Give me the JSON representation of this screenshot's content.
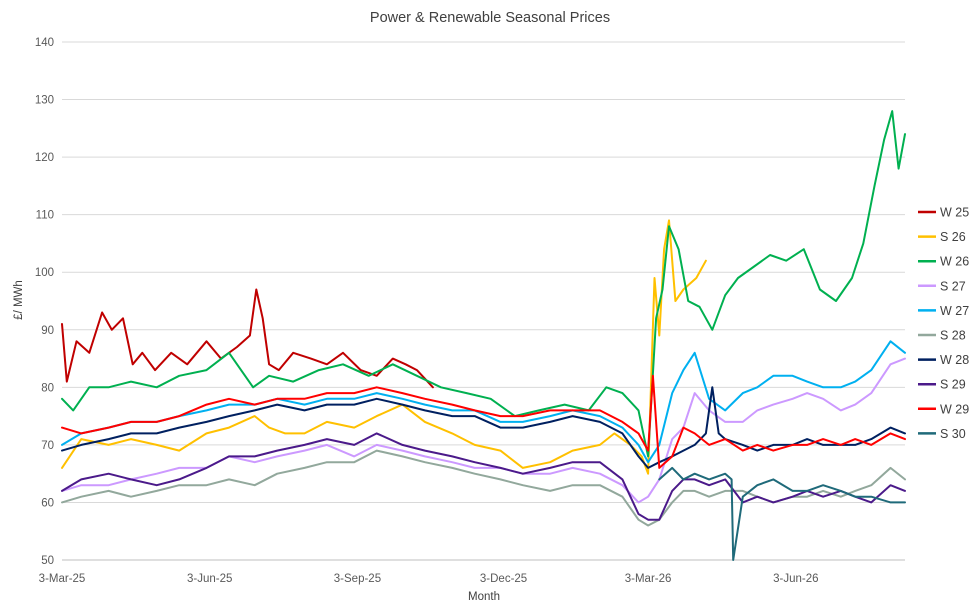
{
  "chart_data": {
    "type": "line",
    "title": "Power & Renewable Seasonal Prices",
    "xlabel": "Month",
    "ylabel": "£/ MWh",
    "ylim": [
      50,
      140
    ],
    "yticks": [
      50,
      60,
      70,
      80,
      90,
      100,
      110,
      120,
      130,
      140
    ],
    "xlim": [
      "2025-03-03",
      "2026-08-10"
    ],
    "xticks": [
      "2025-03-03",
      "2025-06-03",
      "2025-09-03",
      "2025-12-03",
      "2026-03-03",
      "2026-06-03"
    ],
    "xtick_labels": [
      "3-Mar-25",
      "3-Jun-25",
      "3-Sep-25",
      "3-Dec-25",
      "3-Mar-26",
      "3-Jun-26"
    ],
    "grid": "horizontal",
    "legend_position": "right",
    "series": [
      {
        "name": "W 25",
        "color": "#c00000",
        "x": [
          "2025-03-03",
          "2025-03-06",
          "2025-03-12",
          "2025-03-20",
          "2025-03-28",
          "2025-04-03",
          "2025-04-10",
          "2025-04-16",
          "2025-04-22",
          "2025-04-30",
          "2025-05-10",
          "2025-05-20",
          "2025-06-01",
          "2025-06-10",
          "2025-06-20",
          "2025-06-28",
          "2025-07-02",
          "2025-07-06",
          "2025-07-10",
          "2025-07-16",
          "2025-07-25",
          "2025-08-05",
          "2025-08-15",
          "2025-08-25",
          "2025-09-05",
          "2025-09-15",
          "2025-09-25",
          "2025-10-03",
          "2025-10-10",
          "2025-10-20"
        ],
        "y": [
          91,
          81,
          88,
          86,
          93,
          90,
          92,
          84,
          86,
          83,
          86,
          84,
          88,
          85,
          87,
          89,
          97,
          92,
          84,
          83,
          86,
          85,
          84,
          86,
          83,
          82,
          85,
          84,
          83,
          80
        ]
      },
      {
        "name": "S 26",
        "color": "#ffc000",
        "x": [
          "2025-03-03",
          "2025-03-15",
          "2025-04-01",
          "2025-04-15",
          "2025-05-01",
          "2025-05-15",
          "2025-06-01",
          "2025-06-15",
          "2025-07-01",
          "2025-07-10",
          "2025-07-20",
          "2025-08-01",
          "2025-08-15",
          "2025-09-01",
          "2025-09-15",
          "2025-10-01",
          "2025-10-15",
          "2025-11-01",
          "2025-11-15",
          "2025-12-01",
          "2025-12-15",
          "2026-01-01",
          "2026-01-15",
          "2026-02-01",
          "2026-02-10",
          "2026-02-20",
          "2026-02-27",
          "2026-03-03",
          "2026-03-07",
          "2026-03-10",
          "2026-03-13",
          "2026-03-16",
          "2026-03-20",
          "2026-03-25",
          "2026-04-02",
          "2026-04-08"
        ],
        "y": [
          66,
          71,
          70,
          71,
          70,
          69,
          72,
          73,
          75,
          73,
          72,
          72,
          74,
          73,
          75,
          77,
          74,
          72,
          70,
          69,
          66,
          67,
          69,
          70,
          72,
          70,
          68,
          65,
          99,
          89,
          104,
          109,
          95,
          97,
          99,
          102
        ]
      },
      {
        "name": "W 26",
        "color": "#00b050",
        "x": [
          "2025-03-03",
          "2025-03-10",
          "2025-03-20",
          "2025-04-01",
          "2025-04-15",
          "2025-05-01",
          "2025-05-15",
          "2025-06-01",
          "2025-06-15",
          "2025-06-30",
          "2025-07-10",
          "2025-07-25",
          "2025-08-10",
          "2025-08-25",
          "2025-09-10",
          "2025-09-25",
          "2025-10-10",
          "2025-10-25",
          "2025-11-10",
          "2025-11-25",
          "2025-12-10",
          "2025-12-25",
          "2026-01-10",
          "2026-01-25",
          "2026-02-05",
          "2026-02-15",
          "2026-02-25",
          "2026-03-03",
          "2026-03-08",
          "2026-03-12",
          "2026-03-16",
          "2026-03-22",
          "2026-03-28",
          "2026-04-04",
          "2026-04-12",
          "2026-04-20",
          "2026-04-28",
          "2026-05-08",
          "2026-05-18",
          "2026-05-28",
          "2026-06-08",
          "2026-06-18",
          "2026-06-28",
          "2026-07-08",
          "2026-07-15",
          "2026-07-22",
          "2026-07-28",
          "2026-08-02",
          "2026-08-06",
          "2026-08-10"
        ],
        "y": [
          78,
          76,
          80,
          80,
          81,
          80,
          82,
          83,
          86,
          80,
          82,
          81,
          83,
          84,
          82,
          84,
          82,
          80,
          79,
          78,
          75,
          76,
          77,
          76,
          80,
          79,
          76,
          68,
          92,
          97,
          108,
          104,
          95,
          94,
          90,
          96,
          99,
          101,
          103,
          102,
          104,
          97,
          95,
          99,
          105,
          115,
          123,
          128,
          118,
          124
        ]
      },
      {
        "name": "S 27",
        "color": "#cc99ff",
        "x": [
          "2025-03-03",
          "2025-03-15",
          "2025-04-01",
          "2025-04-15",
          "2025-05-01",
          "2025-05-15",
          "2025-06-01",
          "2025-06-15",
          "2025-07-01",
          "2025-07-15",
          "2025-08-01",
          "2025-08-15",
          "2025-09-01",
          "2025-09-15",
          "2025-10-01",
          "2025-10-15",
          "2025-11-01",
          "2025-11-15",
          "2025-12-01",
          "2025-12-15",
          "2026-01-01",
          "2026-01-15",
          "2026-02-01",
          "2026-02-15",
          "2026-02-25",
          "2026-03-03",
          "2026-03-10",
          "2026-03-18",
          "2026-03-25",
          "2026-04-01",
          "2026-04-10",
          "2026-04-20",
          "2026-05-01",
          "2026-05-10",
          "2026-05-20",
          "2026-06-01",
          "2026-06-10",
          "2026-06-20",
          "2026-07-01",
          "2026-07-10",
          "2026-07-20",
          "2026-08-01",
          "2026-08-10"
        ],
        "y": [
          62,
          63,
          63,
          64,
          65,
          66,
          66,
          68,
          67,
          68,
          69,
          70,
          68,
          70,
          69,
          68,
          67,
          66,
          66,
          65,
          65,
          66,
          65,
          63,
          60,
          61,
          64,
          71,
          73,
          79,
          76,
          74,
          74,
          76,
          77,
          78,
          79,
          78,
          76,
          77,
          79,
          84,
          85
        ]
      },
      {
        "name": "W 27",
        "color": "#00b0f0",
        "x": [
          "2025-03-03",
          "2025-03-15",
          "2025-04-01",
          "2025-04-15",
          "2025-05-01",
          "2025-05-15",
          "2025-06-01",
          "2025-06-15",
          "2025-07-01",
          "2025-07-15",
          "2025-08-01",
          "2025-08-15",
          "2025-09-01",
          "2025-09-15",
          "2025-10-01",
          "2025-10-15",
          "2025-11-01",
          "2025-11-15",
          "2025-12-01",
          "2025-12-15",
          "2026-01-01",
          "2026-01-15",
          "2026-02-01",
          "2026-02-15",
          "2026-02-25",
          "2026-03-03",
          "2026-03-10",
          "2026-03-18",
          "2026-03-25",
          "2026-04-01",
          "2026-04-10",
          "2026-04-20",
          "2026-05-01",
          "2026-05-10",
          "2026-05-20",
          "2026-06-01",
          "2026-06-10",
          "2026-06-20",
          "2026-07-01",
          "2026-07-10",
          "2026-07-20",
          "2026-08-01",
          "2026-08-10"
        ],
        "y": [
          70,
          72,
          73,
          74,
          74,
          75,
          76,
          77,
          77,
          78,
          77,
          78,
          78,
          79,
          78,
          77,
          76,
          76,
          74,
          74,
          75,
          76,
          75,
          73,
          70,
          67,
          70,
          79,
          83,
          86,
          78,
          76,
          79,
          80,
          82,
          82,
          81,
          80,
          80,
          81,
          83,
          88,
          86
        ]
      },
      {
        "name": "S 28",
        "color": "#92a89c",
        "x": [
          "2025-03-03",
          "2025-03-15",
          "2025-04-01",
          "2025-04-15",
          "2025-05-01",
          "2025-05-15",
          "2025-06-01",
          "2025-06-15",
          "2025-07-01",
          "2025-07-15",
          "2025-08-01",
          "2025-08-15",
          "2025-09-01",
          "2025-09-15",
          "2025-10-01",
          "2025-10-15",
          "2025-11-01",
          "2025-11-15",
          "2025-12-01",
          "2025-12-15",
          "2026-01-01",
          "2026-01-15",
          "2026-02-01",
          "2026-02-15",
          "2026-02-25",
          "2026-03-03",
          "2026-03-10",
          "2026-03-18",
          "2026-03-25",
          "2026-04-01",
          "2026-04-10",
          "2026-04-20",
          "2026-05-01",
          "2026-05-10",
          "2026-05-20",
          "2026-06-01",
          "2026-06-10",
          "2026-06-20",
          "2026-07-01",
          "2026-07-10",
          "2026-07-20",
          "2026-08-01",
          "2026-08-10"
        ],
        "y": [
          60,
          61,
          62,
          61,
          62,
          63,
          63,
          64,
          63,
          65,
          66,
          67,
          67,
          69,
          68,
          67,
          66,
          65,
          64,
          63,
          62,
          63,
          63,
          61,
          57,
          56,
          57,
          60,
          62,
          62,
          61,
          62,
          62,
          61,
          60,
          61,
          61,
          62,
          61,
          62,
          63,
          66,
          64
        ]
      },
      {
        "name": "W 28",
        "color": "#002060",
        "x": [
          "2025-03-03",
          "2025-03-15",
          "2025-04-01",
          "2025-04-15",
          "2025-05-01",
          "2025-05-15",
          "2025-06-01",
          "2025-06-15",
          "2025-07-01",
          "2025-07-15",
          "2025-08-01",
          "2025-08-15",
          "2025-09-01",
          "2025-09-15",
          "2025-10-01",
          "2025-10-15",
          "2025-11-01",
          "2025-11-15",
          "2025-12-01",
          "2025-12-15",
          "2026-01-01",
          "2026-01-15",
          "2026-02-01",
          "2026-02-15",
          "2026-02-25",
          "2026-03-03",
          "2026-03-10",
          "2026-03-18",
          "2026-03-25",
          "2026-04-01",
          "2026-04-08",
          "2026-04-12",
          "2026-04-16",
          "2026-04-20",
          "2026-05-01",
          "2026-05-10",
          "2026-05-20",
          "2026-06-01",
          "2026-06-10",
          "2026-06-20",
          "2026-07-01",
          "2026-07-10",
          "2026-07-20",
          "2026-08-01",
          "2026-08-10"
        ],
        "y": [
          69,
          70,
          71,
          72,
          72,
          73,
          74,
          75,
          76,
          77,
          76,
          77,
          77,
          78,
          77,
          76,
          75,
          75,
          73,
          73,
          74,
          75,
          74,
          72,
          68,
          66,
          67,
          68,
          69,
          70,
          72,
          80,
          72,
          71,
          70,
          69,
          70,
          70,
          71,
          70,
          70,
          70,
          71,
          73,
          72
        ]
      },
      {
        "name": "S 29",
        "color": "#4b1a8a",
        "x": [
          "2025-03-03",
          "2025-03-15",
          "2025-04-01",
          "2025-04-15",
          "2025-05-01",
          "2025-05-15",
          "2025-06-01",
          "2025-06-15",
          "2025-07-01",
          "2025-07-15",
          "2025-08-01",
          "2025-08-15",
          "2025-09-01",
          "2025-09-15",
          "2025-10-01",
          "2025-10-15",
          "2025-11-01",
          "2025-11-15",
          "2025-12-01",
          "2025-12-15",
          "2026-01-01",
          "2026-01-15",
          "2026-02-01",
          "2026-02-15",
          "2026-02-25",
          "2026-03-03",
          "2026-03-10",
          "2026-03-18",
          "2026-03-25",
          "2026-04-01",
          "2026-04-10",
          "2026-04-20",
          "2026-05-01",
          "2026-05-10",
          "2026-05-20",
          "2026-06-01",
          "2026-06-10",
          "2026-06-20",
          "2026-07-01",
          "2026-07-10",
          "2026-07-20",
          "2026-08-01",
          "2026-08-10"
        ],
        "y": [
          62,
          64,
          65,
          64,
          63,
          64,
          66,
          68,
          68,
          69,
          70,
          71,
          70,
          72,
          70,
          69,
          68,
          67,
          66,
          65,
          66,
          67,
          67,
          64,
          58,
          57,
          57,
          62,
          64,
          64,
          63,
          64,
          60,
          61,
          60,
          61,
          62,
          61,
          62,
          61,
          60,
          63,
          62
        ]
      },
      {
        "name": "W 29",
        "color": "#ff0000",
        "x": [
          "2025-03-03",
          "2025-03-15",
          "2025-04-01",
          "2025-04-15",
          "2025-05-01",
          "2025-05-15",
          "2025-06-01",
          "2025-06-15",
          "2025-07-01",
          "2025-07-15",
          "2025-08-01",
          "2025-08-15",
          "2025-09-01",
          "2025-09-15",
          "2025-10-01",
          "2025-10-15",
          "2025-11-01",
          "2025-11-15",
          "2025-12-01",
          "2025-12-15",
          "2026-01-01",
          "2026-01-15",
          "2026-02-01",
          "2026-02-15",
          "2026-02-25",
          "2026-03-03",
          "2026-03-06",
          "2026-03-10",
          "2026-03-18",
          "2026-03-25",
          "2026-04-01",
          "2026-04-10",
          "2026-04-20",
          "2026-05-01",
          "2026-05-10",
          "2026-05-20",
          "2026-06-01",
          "2026-06-10",
          "2026-06-20",
          "2026-07-01",
          "2026-07-10",
          "2026-07-20",
          "2026-08-01",
          "2026-08-10"
        ],
        "y": [
          73,
          72,
          73,
          74,
          74,
          75,
          77,
          78,
          77,
          78,
          78,
          79,
          79,
          80,
          79,
          78,
          77,
          76,
          75,
          75,
          76,
          76,
          76,
          74,
          72,
          69,
          82,
          66,
          68,
          73,
          72,
          70,
          71,
          69,
          70,
          69,
          70,
          70,
          71,
          70,
          71,
          70,
          72,
          71
        ]
      },
      {
        "name": "S 30",
        "color": "#1f6a7a",
        "x": [
          "2026-03-10",
          "2026-03-18",
          "2026-03-25",
          "2026-04-01",
          "2026-04-10",
          "2026-04-20",
          "2026-04-24",
          "2026-04-25",
          "2026-05-01",
          "2026-05-10",
          "2026-05-20",
          "2026-06-01",
          "2026-06-10",
          "2026-06-20",
          "2026-07-01",
          "2026-07-10",
          "2026-07-20",
          "2026-08-01",
          "2026-08-10"
        ],
        "y": [
          64,
          66,
          64,
          65,
          64,
          65,
          64,
          50,
          61,
          63,
          64,
          62,
          62,
          63,
          62,
          61,
          61,
          60,
          60
        ]
      }
    ]
  }
}
